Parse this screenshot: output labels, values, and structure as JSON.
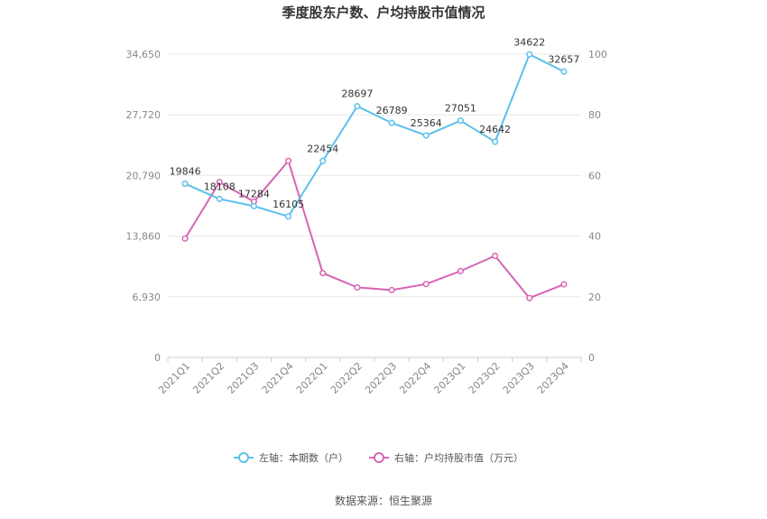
{
  "chart_data": {
    "type": "line",
    "title": "季度股东户数、户均持股市值情况",
    "categories": [
      "2021Q1",
      "2021Q2",
      "2021Q3",
      "2021Q4",
      "2022Q1",
      "2022Q2",
      "2022Q3",
      "2022Q4",
      "2023Q1",
      "2023Q2",
      "2023Q3",
      "2023Q4"
    ],
    "y_left": {
      "ticks": [
        "0",
        "6,930",
        "13,860",
        "20,790",
        "27,720",
        "34,650"
      ],
      "range": [
        0,
        34650
      ]
    },
    "y_right": {
      "ticks": [
        "0",
        "20",
        "40",
        "60",
        "80",
        "100"
      ],
      "range": [
        0,
        100
      ]
    },
    "series": [
      {
        "name": "左轴：本期数（户）",
        "axis": "left",
        "color": "#5bc0eb",
        "values": [
          19846,
          18108,
          17284,
          16105,
          22454,
          28697,
          26789,
          25364,
          27051,
          24642,
          34622,
          32657
        ],
        "labels": [
          "19846",
          "18108",
          "17284",
          "16105",
          "22454",
          "28697",
          "26789",
          "25364",
          "27051",
          "24642",
          "34622",
          "32657"
        ]
      },
      {
        "name": "右轴：户均持股市值（万元）",
        "axis": "right",
        "color": "#d665b4",
        "values": [
          39.2,
          57.8,
          51.4,
          64.8,
          27.8,
          23.1,
          22.2,
          24.2,
          28.5,
          33.5,
          19.6,
          24.1
        ]
      }
    ],
    "grid": true,
    "legend_position": "bottom"
  },
  "source": "数据来源：恒生聚源"
}
